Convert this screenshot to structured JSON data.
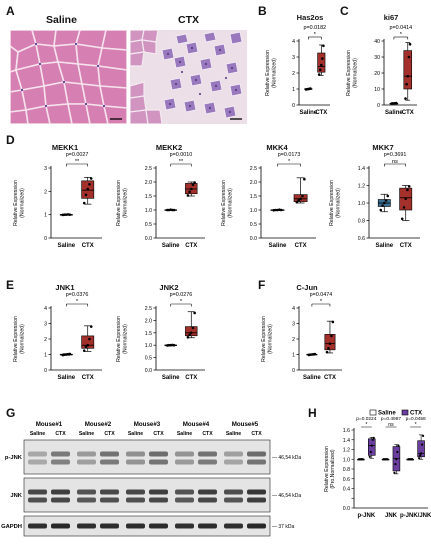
{
  "panel_letters": [
    "A",
    "B",
    "C",
    "D",
    "E",
    "F",
    "G",
    "H"
  ],
  "histology": {
    "labels": [
      "Saline",
      "CTX"
    ]
  },
  "colors": {
    "saline_box": "#3a6f93",
    "ctx_box": "#a3302a",
    "he_pink": "#d884b4",
    "he_purple": "#6e4a9a",
    "violet": "#6b3fa0"
  },
  "chart_data": [
    {
      "id": "has2os",
      "type": "box",
      "title": "Has2os",
      "categories": [
        "Saline",
        "CTX"
      ],
      "ylabel": "Relative Expression (Normalized)",
      "ylim": [
        0,
        4
      ],
      "yticks": [
        0,
        1,
        2,
        3,
        4
      ],
      "pvalue": "p=0.0182",
      "significance": "*",
      "boxes": [
        {
          "min": 0.96,
          "q1": 0.98,
          "median": 1.0,
          "q3": 1.02,
          "max": 1.04,
          "color": "#000000",
          "points": [
            0.97,
            0.99,
            1.0,
            1.01,
            1.03
          ]
        },
        {
          "min": 1.85,
          "q1": 2.05,
          "median": 2.4,
          "q3": 3.25,
          "max": 3.75,
          "color": "#a3302a",
          "points": [
            1.9,
            2.2,
            2.5,
            2.9,
            3.7
          ]
        }
      ]
    },
    {
      "id": "ki67",
      "type": "box",
      "title": "ki67",
      "categories": [
        "Saline",
        "CTX"
      ],
      "ylabel": "Relative Expression (Normalized)",
      "ylim": [
        0,
        40
      ],
      "yticks": [
        0,
        10,
        20,
        30,
        40
      ],
      "pvalue": "p=0.0414",
      "significance": "*",
      "boxes": [
        {
          "min": 0.8,
          "q1": 0.9,
          "median": 1.0,
          "q3": 1.1,
          "max": 1.2,
          "color": "#000000",
          "points": [
            0.9,
            1.0,
            1.0,
            1.1,
            1.2
          ]
        },
        {
          "min": 3,
          "q1": 10,
          "median": 18,
          "q3": 34,
          "max": 39,
          "color": "#a3302a",
          "points": [
            4,
            13,
            18,
            30,
            38
          ]
        }
      ]
    },
    {
      "id": "mekk1",
      "type": "box",
      "title": "MEKK1",
      "categories": [
        "Saline",
        "CTX"
      ],
      "ylabel": "Relative Expression (Normalized)",
      "ylim": [
        0,
        3
      ],
      "yticks": [
        0,
        1,
        2,
        3
      ],
      "pvalue": "p=0.0027",
      "significance": "**",
      "boxes": [
        {
          "min": 0.98,
          "q1": 0.99,
          "median": 1.0,
          "q3": 1.01,
          "max": 1.02,
          "color": "#000000",
          "points": [
            0.99,
            1.0,
            1.0,
            1.01,
            1.0
          ]
        },
        {
          "min": 1.45,
          "q1": 1.7,
          "median": 2.05,
          "q3": 2.45,
          "max": 2.6,
          "color": "#a3302a",
          "points": [
            1.5,
            1.85,
            2.1,
            2.3,
            2.55
          ]
        }
      ]
    },
    {
      "id": "mekk2",
      "type": "box",
      "title": "MEKK2",
      "categories": [
        "Saline",
        "CTX"
      ],
      "ylabel": "Relative Expression (Normalized)",
      "ylim": [
        0,
        2.5
      ],
      "yticks": [
        0,
        0.5,
        1.0,
        1.5,
        2.0,
        2.5
      ],
      "pvalue": "p=0.0010",
      "significance": "**",
      "boxes": [
        {
          "min": 0.99,
          "q1": 1.0,
          "median": 1.0,
          "q3": 1.01,
          "max": 1.02,
          "color": "#000000",
          "points": [
            1.0,
            1.0,
            1.01,
            1.0,
            1.0
          ]
        },
        {
          "min": 1.5,
          "q1": 1.58,
          "median": 1.75,
          "q3": 1.95,
          "max": 2.0,
          "color": "#a3302a",
          "points": [
            1.52,
            1.65,
            1.75,
            1.9,
            1.98
          ]
        }
      ]
    },
    {
      "id": "mkk4",
      "type": "box",
      "title": "MKK4",
      "categories": [
        "Saline",
        "CTX"
      ],
      "ylabel": "Relative Expression (Normalized)",
      "ylim": [
        0,
        2.5
      ],
      "yticks": [
        0,
        0.5,
        1.0,
        1.5,
        2.0,
        2.5
      ],
      "pvalue": "p=0.0173",
      "significance": "*",
      "boxes": [
        {
          "min": 0.98,
          "q1": 0.99,
          "median": 1.0,
          "q3": 1.01,
          "max": 1.02,
          "color": "#000000",
          "points": [
            0.99,
            1.0,
            1.0,
            1.01,
            1.0
          ]
        },
        {
          "min": 1.25,
          "q1": 1.3,
          "median": 1.4,
          "q3": 1.55,
          "max": 2.15,
          "color": "#a3302a",
          "points": [
            1.28,
            1.35,
            1.4,
            1.5,
            2.1
          ]
        }
      ]
    },
    {
      "id": "mkk7",
      "type": "box",
      "title": "MKK7",
      "categories": [
        "Saline",
        "CTX"
      ],
      "ylabel": "Relative Expression (Normalized)",
      "ylim": [
        0.6,
        1.4
      ],
      "yticks": [
        0.6,
        0.8,
        1.0,
        1.2,
        1.4
      ],
      "pvalue": "p=0.3691",
      "significance": "ns",
      "boxes": [
        {
          "min": 0.9,
          "q1": 0.96,
          "median": 1.0,
          "q3": 1.04,
          "max": 1.1,
          "color": "#3a6f93",
          "points": [
            0.92,
            0.97,
            1.0,
            1.03,
            1.08
          ]
        },
        {
          "min": 0.8,
          "q1": 0.92,
          "median": 1.06,
          "q3": 1.17,
          "max": 1.2,
          "color": "#a3302a",
          "points": [
            0.82,
            0.95,
            1.05,
            1.15,
            1.19
          ]
        }
      ]
    },
    {
      "id": "jnk1",
      "type": "box",
      "title": "JNK1",
      "categories": [
        "Saline",
        "CTX"
      ],
      "ylabel": "Relative Expression (Normalized)",
      "ylim": [
        0,
        4
      ],
      "yticks": [
        0,
        1,
        2,
        3,
        4
      ],
      "pvalue": "p=0.0376",
      "significance": "*",
      "boxes": [
        {
          "min": 0.95,
          "q1": 0.98,
          "median": 1.0,
          "q3": 1.02,
          "max": 1.05,
          "color": "#000000",
          "points": [
            0.96,
            0.99,
            1.0,
            1.02,
            1.04
          ]
        },
        {
          "min": 1.2,
          "q1": 1.4,
          "median": 1.6,
          "q3": 2.2,
          "max": 2.85,
          "color": "#a3302a",
          "points": [
            1.25,
            1.5,
            1.6,
            2.0,
            2.8
          ]
        }
      ]
    },
    {
      "id": "jnk2",
      "type": "box",
      "title": "JNK2",
      "categories": [
        "Saline",
        "CTX"
      ],
      "ylabel": "Relative Expression (Normalized)",
      "ylim": [
        0,
        2.5
      ],
      "yticks": [
        0,
        0.5,
        1.0,
        1.5,
        2.0,
        2.5
      ],
      "pvalue": "p=0.0276",
      "significance": "*",
      "boxes": [
        {
          "min": 0.98,
          "q1": 0.99,
          "median": 1.0,
          "q3": 1.01,
          "max": 1.02,
          "color": "#000000",
          "points": [
            0.99,
            1.0,
            1.0,
            1.01,
            1.0
          ]
        },
        {
          "min": 1.3,
          "q1": 1.38,
          "median": 1.5,
          "q3": 1.75,
          "max": 2.35,
          "color": "#a3302a",
          "points": [
            1.32,
            1.42,
            1.5,
            1.7,
            2.3
          ]
        }
      ]
    },
    {
      "id": "cjun",
      "type": "box",
      "title": "C-Jun",
      "categories": [
        "Saline",
        "CTX"
      ],
      "ylabel": "Relative Expression (Normalized)",
      "ylim": [
        0,
        4
      ],
      "yticks": [
        0,
        1,
        2,
        3,
        4
      ],
      "pvalue": "p=0.0474",
      "significance": "*",
      "boxes": [
        {
          "min": 0.96,
          "q1": 0.98,
          "median": 1.0,
          "q3": 1.02,
          "max": 1.04,
          "color": "#000000",
          "points": [
            0.97,
            0.99,
            1.0,
            1.01,
            1.03
          ]
        },
        {
          "min": 1.1,
          "q1": 1.3,
          "median": 1.7,
          "q3": 2.3,
          "max": 3.15,
          "color": "#a3302a",
          "points": [
            1.15,
            1.4,
            1.7,
            2.2,
            3.1
          ]
        }
      ]
    },
    {
      "id": "western-quant",
      "type": "box",
      "title": "",
      "categories": [
        "p-JNK",
        "JNK",
        "p-JNK/JNK"
      ],
      "ylabel": "Relative Expression (Pro.Normalized)",
      "ylim": [
        0,
        1.6
      ],
      "yticks": [
        0,
        0.2,
        0.4,
        0.6,
        0.8,
        1.0,
        1.2,
        1.4,
        1.6
      ],
      "legend": [
        "Saline",
        "CTX"
      ],
      "legend_position": "top",
      "groups": [
        {
          "pvalue": "p=0.0224",
          "significance": "*",
          "saline": {
            "min": 0.99,
            "q1": 1.0,
            "median": 1.0,
            "q3": 1.0,
            "max": 1.01,
            "points": [
              1.0,
              1.0,
              1.0,
              1.0,
              1.0
            ]
          },
          "ctx": {
            "min": 1.02,
            "q1": 1.08,
            "median": 1.28,
            "q3": 1.42,
            "max": 1.45,
            "points": [
              1.05,
              1.15,
              1.28,
              1.4,
              1.44
            ]
          }
        },
        {
          "pvalue": "p=0.4987",
          "significance": "ns",
          "saline": {
            "min": 0.99,
            "q1": 1.0,
            "median": 1.0,
            "q3": 1.0,
            "max": 1.01,
            "points": [
              1.0,
              1.0,
              1.0,
              1.0,
              1.0
            ]
          },
          "ctx": {
            "min": 0.7,
            "q1": 0.76,
            "median": 1.02,
            "q3": 1.26,
            "max": 1.3,
            "points": [
              0.72,
              0.9,
              1.0,
              1.15,
              1.28
            ]
          }
        },
        {
          "pvalue": "p=0.0458",
          "significance": "*",
          "saline": {
            "min": 0.99,
            "q1": 1.0,
            "median": 1.0,
            "q3": 1.0,
            "max": 1.01,
            "points": [
              1.0,
              1.0,
              1.0,
              1.0,
              1.0
            ]
          },
          "ctx": {
            "min": 1.0,
            "q1": 1.05,
            "median": 1.12,
            "q3": 1.38,
            "max": 1.5,
            "points": [
              1.02,
              1.08,
              1.12,
              1.3,
              1.48
            ]
          }
        }
      ],
      "colors": {
        "saline": "#ffffff",
        "ctx": "#6b3fa0"
      }
    }
  ],
  "western": {
    "mice": [
      "Mouse#1",
      "Mouse#2",
      "Mouse#3",
      "Mouse#4",
      "Mouse#5"
    ],
    "lane_labels": [
      "Saline",
      "CTX"
    ],
    "rows": [
      "p-JNK",
      "JNK",
      "GAPDH"
    ],
    "mw": [
      "46,54 kDa",
      "46,54 kDa",
      "37 kDa"
    ]
  }
}
